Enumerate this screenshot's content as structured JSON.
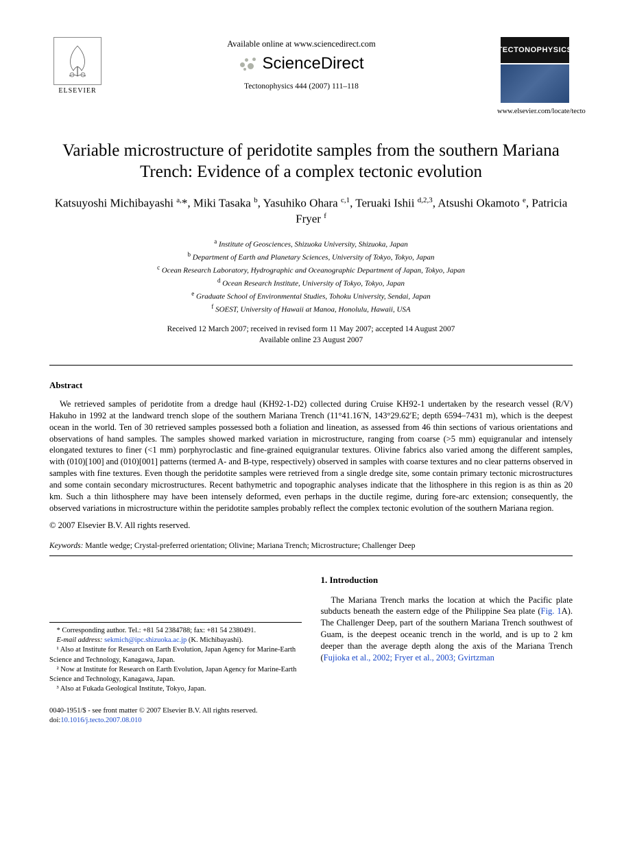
{
  "header": {
    "elsevier_label": "ELSEVIER",
    "available_online": "Available online at www.sciencedirect.com",
    "sciencedirect_label": "ScienceDirect",
    "citation": "Tectonophysics 444 (2007) 111–118",
    "journal_cover_label": "TECTONOPHYSICS",
    "locate_url": "www.elsevier.com/locate/tecto"
  },
  "title": "Variable microstructure of peridotite samples from the southern Mariana Trench: Evidence of a complex tectonic evolution",
  "authors_html": "Katsuyoshi Michibayashi <sup>a,</sup>*, Miki Tasaka <sup>b</sup>, Yasuhiko Ohara <sup>c,1</sup>, Teruaki Ishii <sup>d,2,3</sup>, Atsushi Okamoto <sup>e</sup>, Patricia Fryer <sup>f</sup>",
  "affiliations": [
    "a|Institute of Geosciences, Shizuoka University, Shizuoka, Japan",
    "b|Department of Earth and Planetary Sciences, University of Tokyo, Tokyo, Japan",
    "c|Ocean Research Laboratory, Hydrographic and Oceanographic Department of Japan, Tokyo, Japan",
    "d|Ocean Research Institute, University of Tokyo, Tokyo, Japan",
    "e|Graduate School of Environmental Studies, Tohoku University, Sendai, Japan",
    "f|SOEST, University of Hawaii at Manoa, Honolulu, Hawaii, USA"
  ],
  "dates": {
    "line1": "Received 12 March 2007; received in revised form 11 May 2007; accepted 14 August 2007",
    "line2": "Available online 23 August 2007"
  },
  "abstract": {
    "heading": "Abstract",
    "body": "We retrieved samples of peridotite from a dredge haul (KH92-1-D2) collected during Cruise KH92-1 undertaken by the research vessel (R/V) Hakuho in 1992 at the landward trench slope of the southern Mariana Trench (11°41.16′N, 143°29.62′E; depth 6594–7431 m), which is the deepest ocean in the world. Ten of 30 retrieved samples possessed both a foliation and lineation, as assessed from 46 thin sections of various orientations and observations of hand samples. The samples showed marked variation in microstructure, ranging from coarse (>5 mm) equigranular and intensely elongated textures to finer (<1 mm) porphyroclastic and fine-grained equigranular textures. Olivine fabrics also varied among the different samples, with (010)[100] and (010)[001] patterns (termed A- and B-type, respectively) observed in samples with coarse textures and no clear patterns observed in samples with fine textures. Even though the peridotite samples were retrieved from a single dredge site, some contain primary tectonic microstructures and some contain secondary microstructures. Recent bathymetric and topographic analyses indicate that the lithosphere in this region is as thin as 20 km. Such a thin lithosphere may have been intensely deformed, even perhaps in the ductile regime, during fore-arc extension; consequently, the observed variations in microstructure within the peridotite samples probably reflect the complex tectonic evolution of the southern Mariana region.",
    "copyright": "© 2007 Elsevier B.V. All rights reserved."
  },
  "keywords": {
    "label": "Keywords:",
    "list": "Mantle wedge; Crystal-preferred orientation; Olivine; Mariana Trench; Microstructure; Challenger Deep"
  },
  "footnotes": {
    "corresp": "* Corresponding author. Tel.: +81 54 2384788; fax: +81 54 2380491.",
    "email_label": "E-mail address:",
    "email": "sekmich@ipc.shizuoka.ac.jp",
    "email_suffix": "(K. Michibayashi).",
    "n1": "¹ Also at Institute for Research on Earth Evolution, Japan Agency for Marine-Earth Science and Technology, Kanagawa, Japan.",
    "n2": "² Now at Institute for Research on Earth Evolution, Japan Agency for Marine-Earth Science and Technology, Kanagawa, Japan.",
    "n3": "³ Also at Fukada Geological Institute, Tokyo, Japan."
  },
  "intro": {
    "heading": "1. Introduction",
    "para_pre": "The Mariana Trench marks the location at which the Pacific plate subducts beneath the eastern edge of the Philippine Sea plate (",
    "fig_link": "Fig. 1",
    "para_mid": "A). The Challenger Deep, part of the southern Mariana Trench southwest of Guam, is the deepest oceanic trench in the world, and is up to 2 km deeper than the average depth along the axis of the Mariana Trench (",
    "ref_link": "Fujioka et al., 2002; Fryer et al., 2003; Gvirtzman"
  },
  "footer": {
    "line1": "0040-1951/$ - see front matter © 2007 Elsevier B.V. All rights reserved.",
    "doi_label": "doi:",
    "doi": "10.1016/j.tecto.2007.08.010"
  },
  "colors": {
    "link": "#1646c8",
    "text": "#000000",
    "cover_bg": "#131313",
    "cover_text": "#ffffff"
  }
}
